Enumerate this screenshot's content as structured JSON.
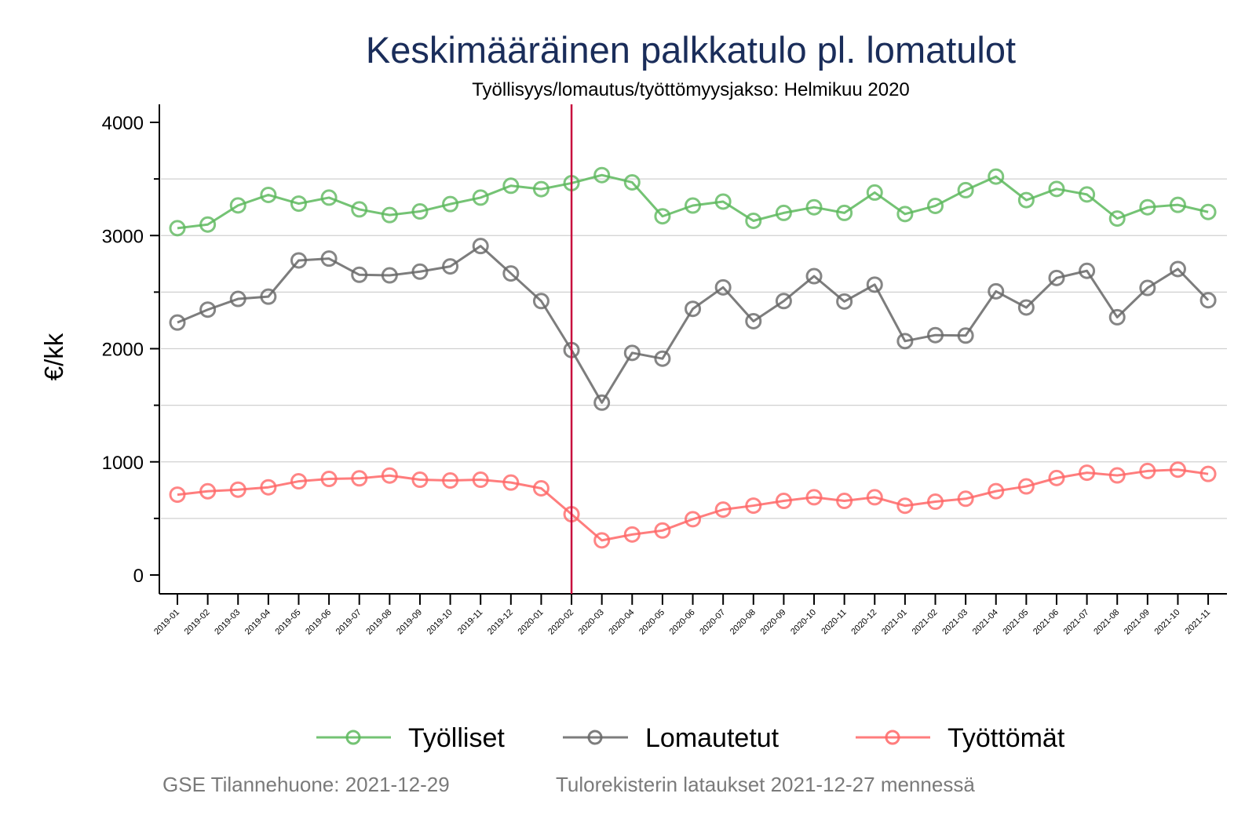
{
  "chart_data": {
    "type": "line",
    "title": "Keskimääräinen palkkatulo pl. lomatulot",
    "subtitle": "Työllisyys/lomautus/työttömyysjakso: Helmikuu 2020",
    "xlabel": "",
    "ylabel": "€/kk",
    "ylim": [
      0,
      4000
    ],
    "yticks": [
      0,
      1000,
      2000,
      3000,
      4000
    ],
    "ytick_labels": [
      "0",
      "1000",
      "2000",
      "3000",
      "4000"
    ],
    "yminor_ticks": [
      500,
      1500,
      2500,
      3500
    ],
    "grid": true,
    "legend_position": "bottom",
    "categories": [
      "2019-01",
      "2019-02",
      "2019-03",
      "2019-04",
      "2019-05",
      "2019-06",
      "2019-07",
      "2019-08",
      "2019-09",
      "2019-10",
      "2019-11",
      "2019-12",
      "2020-01",
      "2020-02",
      "2020-03",
      "2020-04",
      "2020-05",
      "2020-06",
      "2020-07",
      "2020-08",
      "2020-09",
      "2020-10",
      "2020-11",
      "2020-12",
      "2021-01",
      "2021-02",
      "2021-03",
      "2021-04",
      "2021-05",
      "2021-06",
      "2021-07",
      "2021-08",
      "2021-09",
      "2021-10",
      "2021-11"
    ],
    "reference_line": {
      "x": "2020-02",
      "color": "#c8103e"
    },
    "series": [
      {
        "name": "Työlliset",
        "color": "#5cb85c",
        "values": [
          3065,
          3097,
          3266,
          3359,
          3282,
          3335,
          3231,
          3181,
          3213,
          3278,
          3335,
          3440,
          3410,
          3463,
          3534,
          3470,
          3170,
          3265,
          3300,
          3130,
          3200,
          3250,
          3200,
          3380,
          3190,
          3262,
          3401,
          3521,
          3313,
          3412,
          3363,
          3150,
          3250,
          3271,
          3208
        ]
      },
      {
        "name": "Lomautetut",
        "color": "#666666",
        "values": [
          2231,
          2345,
          2440,
          2460,
          2780,
          2796,
          2653,
          2648,
          2681,
          2727,
          2907,
          2665,
          2421,
          1988,
          1523,
          1963,
          1912,
          2352,
          2542,
          2243,
          2421,
          2641,
          2417,
          2566,
          2067,
          2120,
          2116,
          2507,
          2364,
          2625,
          2688,
          2278,
          2537,
          2704,
          2428
        ]
      },
      {
        "name": "Työttömät",
        "color": "#ff6666",
        "values": [
          710,
          740,
          754,
          775,
          828,
          849,
          854,
          879,
          842,
          835,
          842,
          817,
          766,
          537,
          306,
          358,
          393,
          493,
          578,
          613,
          655,
          687,
          655,
          687,
          612,
          648,
          674,
          741,
          783,
          857,
          904,
          880,
          919,
          931,
          893
        ]
      }
    ]
  },
  "footer": {
    "left": "GSE Tilannehuone: 2021-12-29",
    "right": "Tulorekisterin lataukset 2021-12-27 mennessä"
  }
}
